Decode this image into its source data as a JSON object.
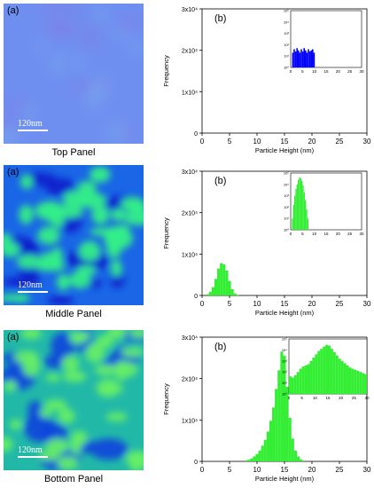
{
  "panels": [
    {
      "caption": "Top Panel",
      "image_tag": "(a)",
      "scale_label": "120nm",
      "colors": {
        "base": "#6f8ff0",
        "blob": "#78a8ee",
        "dark": "#7f7fe8"
      },
      "chart_data": {
        "type": "histogram",
        "panel_tag": "(b)",
        "xlabel": "Particle Height (nm)",
        "ylabel": "Frequency",
        "xlim": [
          0,
          30
        ],
        "ylim": [
          0,
          30000
        ],
        "xticks": [
          "0",
          "5",
          "10",
          "15",
          "20",
          "25",
          "30"
        ],
        "yticks": [
          "0",
          "1x10⁴",
          "2x10⁴",
          "3x10⁴"
        ],
        "bar_color": "#0000ff",
        "main_bins": [],
        "inset": {
          "xlim": [
            0,
            30
          ],
          "log_ylim": [
            0,
            5
          ],
          "xticks": [
            "0",
            "5",
            "10",
            "15",
            "20",
            "25",
            "30"
          ],
          "yticks": [
            "10⁰",
            "10¹",
            "10²",
            "10³",
            "10⁴",
            "10⁵"
          ],
          "bins": [
            [
              0.6,
              1.3
            ],
            [
              1.2,
              1.6
            ],
            [
              1.8,
              1.4
            ],
            [
              2.4,
              1.7
            ],
            [
              3.0,
              1.5
            ],
            [
              3.6,
              1.3
            ],
            [
              4.2,
              1.6
            ],
            [
              4.8,
              1.4
            ],
            [
              5.4,
              1.7
            ],
            [
              6.0,
              1.5
            ],
            [
              6.6,
              1.3
            ],
            [
              7.2,
              1.6
            ],
            [
              7.8,
              1.4
            ],
            [
              8.4,
              1.5
            ],
            [
              9.0,
              1.6
            ],
            [
              9.6,
              1.3
            ]
          ]
        }
      }
    },
    {
      "caption": "Middle Panel",
      "image_tag": "(a)",
      "scale_label": "120nm",
      "colors": {
        "base": "#1a66e6",
        "blob": "#33ee88",
        "dark": "#0a1fcc"
      },
      "chart_data": {
        "type": "histogram",
        "panel_tag": "(b)",
        "xlabel": "Particle Height (nm)",
        "ylabel": "Frequency",
        "xlim": [
          0,
          30
        ],
        "ylim": [
          0,
          30000
        ],
        "xticks": [
          "0",
          "5",
          "10",
          "15",
          "20",
          "25",
          "30"
        ],
        "yticks": [
          "0",
          "1x10⁴",
          "2x10⁴",
          "3x10⁴"
        ],
        "bar_color": "#33ee33",
        "main_bins": [
          [
            1.0,
            300
          ],
          [
            1.5,
            900
          ],
          [
            2.0,
            2000
          ],
          [
            2.5,
            4000
          ],
          [
            3.0,
            6500
          ],
          [
            3.5,
            7800
          ],
          [
            4.0,
            7500
          ],
          [
            4.5,
            6000
          ],
          [
            5.0,
            3500
          ],
          [
            5.5,
            1500
          ],
          [
            6.0,
            500
          ],
          [
            6.5,
            150
          ]
        ],
        "inset": {
          "xlim": [
            0,
            30
          ],
          "log_ylim": [
            0,
            5
          ],
          "xticks": [
            "0",
            "5",
            "10",
            "15",
            "20",
            "25",
            "30"
          ],
          "yticks": [
            "10⁰",
            "10¹",
            "10²",
            "10³",
            "10⁴",
            "10⁵"
          ],
          "bins": [
            [
              0.5,
              1.0
            ],
            [
              1.0,
              2.2
            ],
            [
              1.5,
              3.0
            ],
            [
              2.0,
              3.6
            ],
            [
              2.5,
              4.0
            ],
            [
              3.0,
              4.4
            ],
            [
              3.5,
              4.6
            ],
            [
              4.0,
              4.55
            ],
            [
              4.5,
              4.3
            ],
            [
              5.0,
              3.9
            ],
            [
              5.5,
              3.3
            ],
            [
              6.0,
              2.6
            ],
            [
              6.5,
              1.8
            ],
            [
              7.0,
              1.0
            ]
          ]
        }
      }
    },
    {
      "caption": "Bottom Panel",
      "image_tag": "(a)",
      "scale_label": "120nm",
      "colors": {
        "base": "#22b8a8",
        "blob": "#66ee66",
        "dark": "#1144dd"
      },
      "chart_data": {
        "type": "histogram",
        "panel_tag": "(b)",
        "xlabel": "Particle Height (nm)",
        "ylabel": "Frequency",
        "xlim": [
          0,
          30
        ],
        "ylim": [
          0,
          30000
        ],
        "xticks": [
          "0",
          "5",
          "10",
          "15",
          "20",
          "25",
          "30"
        ],
        "yticks": [
          "0",
          "1x10⁴",
          "2x10⁴",
          "3x10⁴"
        ],
        "bar_color": "#33ee33",
        "main_bins": [
          [
            8.0,
            200
          ],
          [
            8.5,
            400
          ],
          [
            9.0,
            700
          ],
          [
            9.5,
            1200
          ],
          [
            10.0,
            1800
          ],
          [
            10.5,
            2600
          ],
          [
            11.0,
            3800
          ],
          [
            11.5,
            5200
          ],
          [
            12.0,
            7200
          ],
          [
            12.5,
            9800
          ],
          [
            13.0,
            13000
          ],
          [
            13.5,
            17500
          ],
          [
            14.0,
            22000
          ],
          [
            14.5,
            26500
          ],
          [
            15.0,
            25500
          ],
          [
            15.5,
            18000
          ],
          [
            16.0,
            10500
          ],
          [
            16.5,
            5500
          ],
          [
            17.0,
            2600
          ],
          [
            17.5,
            1200
          ],
          [
            18.0,
            500
          ],
          [
            18.5,
            200
          ]
        ],
        "inset": {
          "xlim": [
            0,
            30
          ],
          "log_ylim": [
            0,
            5
          ],
          "xticks": [
            "0",
            "5",
            "10",
            "15",
            "20",
            "25",
            "30"
          ],
          "yticks": [
            "10⁰",
            "10¹",
            "10²",
            "10³",
            "10⁴",
            "10⁵"
          ],
          "bins": [
            [
              0,
              1.6
            ],
            [
              1,
              1.5
            ],
            [
              2,
              1.7
            ],
            [
              3,
              2.0
            ],
            [
              4,
              2.3
            ],
            [
              5,
              2.5
            ],
            [
              6,
              2.6
            ],
            [
              7,
              2.7
            ],
            [
              8,
              3.0
            ],
            [
              9,
              3.3
            ],
            [
              10,
              3.6
            ],
            [
              11,
              3.9
            ],
            [
              12,
              4.1
            ],
            [
              13,
              4.3
            ],
            [
              14,
              4.45
            ],
            [
              15,
              4.4
            ],
            [
              16,
              4.1
            ],
            [
              17,
              3.8
            ],
            [
              18,
              3.5
            ],
            [
              19,
              3.2
            ],
            [
              20,
              3.0
            ],
            [
              21,
              2.8
            ],
            [
              22,
              2.6
            ],
            [
              23,
              2.4
            ],
            [
              24,
              2.3
            ],
            [
              25,
              2.2
            ],
            [
              26,
              2.1
            ],
            [
              27,
              2.0
            ],
            [
              28,
              1.9
            ],
            [
              29,
              1.8
            ]
          ]
        }
      }
    }
  ]
}
